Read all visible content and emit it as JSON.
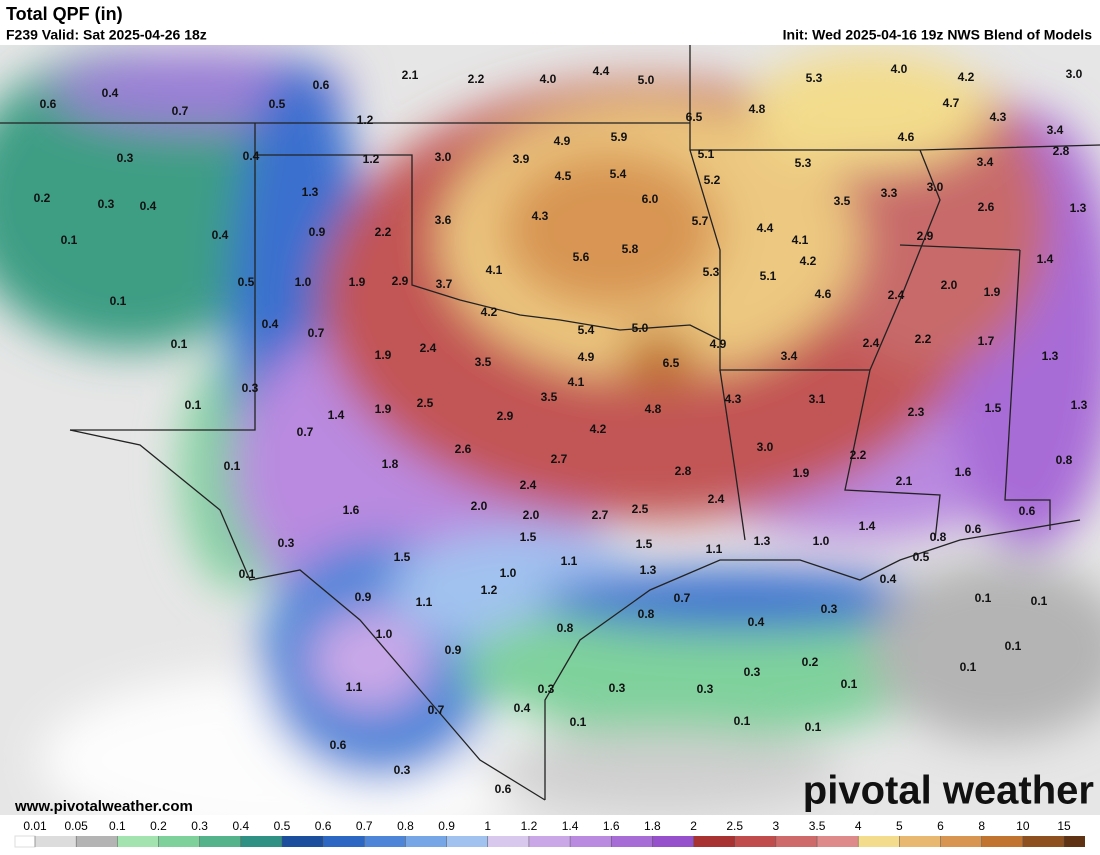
{
  "header": {
    "title": "Total QPF (in)",
    "valid": "F239 Valid: Sat 2025-04-26 18z",
    "init": "Init: Wed 2025-04-16 19z NWS Blend of Models"
  },
  "footer": {
    "url": "www.pivotalweather.com",
    "logo": "pivotal weather"
  },
  "map_labels": [
    "2.1",
    "2.2",
    "4.0",
    "4.4",
    "5.0",
    "5.3",
    "4.0",
    "4.2",
    "3.0",
    "0.6",
    "0.4",
    "0.7",
    "0.5",
    "0.6",
    "1.2",
    "6.5",
    "4.8",
    "4.7",
    "4.3",
    "4.6",
    "3.4",
    "0.3",
    "0.4",
    "1.2",
    "3.0",
    "3.9",
    "4.9",
    "5.9",
    "5.1",
    "5.3",
    "3.4",
    "2.8",
    "0.2",
    "0.3",
    "0.4",
    "1.3",
    "4.5",
    "5.4",
    "5.2",
    "3.0",
    "3.3",
    "3.5",
    "6.0",
    "2.6",
    "1.3",
    "0.1",
    "0.4",
    "0.9",
    "2.2",
    "3.6",
    "4.3",
    "5.7",
    "4.4",
    "4.1",
    "2.9",
    "5.6",
    "5.8",
    "4.2",
    "1.4",
    "0.5",
    "1.0",
    "1.9",
    "2.9",
    "3.7",
    "4.1",
    "5.3",
    "5.1",
    "2.0",
    "1.9",
    "4.6",
    "2.4",
    "0.1",
    "4.2",
    "0.4",
    "0.7",
    "5.4",
    "5.0",
    "4.9",
    "2.2",
    "1.7",
    "2.4",
    "0.1",
    "1.9",
    "2.4",
    "3.4",
    "1.3",
    "3.5",
    "4.9",
    "6.5",
    "0.3",
    "4.1",
    "3.5",
    "4.3",
    "3.1",
    "0.1",
    "1.4",
    "1.9",
    "2.5",
    "2.9",
    "4.8",
    "2.3",
    "1.5",
    "1.3",
    "0.7",
    "4.2",
    "2.6",
    "3.0",
    "0.1",
    "1.8",
    "2.7",
    "2.8",
    "1.9",
    "2.2",
    "1.6",
    "0.8",
    "2.4",
    "2.1",
    "1.6",
    "2.0",
    "2.0",
    "2.7",
    "2.5",
    "2.4",
    "1.5",
    "1.4",
    "0.6",
    "0.6",
    "0.8",
    "0.3",
    "1.5",
    "1.1",
    "1.3",
    "1.0",
    "0.5",
    "1.5",
    "1.1",
    "1.3",
    "0.1",
    "1.0",
    "0.4",
    "0.7",
    "0.9",
    "1.1",
    "1.2",
    "0.1",
    "0.1",
    "0.3",
    "0.8",
    "0.4",
    "0.8",
    "1.0",
    "0.1",
    "0.9",
    "0.2",
    "0.3",
    "0.1",
    "1.1",
    "0.3",
    "0.3",
    "0.3",
    "0.1",
    "0.4",
    "0.7",
    "0.1",
    "0.1",
    "0.1",
    "0.6",
    "0.3",
    "0.6"
  ],
  "legend": {
    "ticks": [
      0.01,
      0.05,
      0.1,
      0.2,
      0.3,
      0.4,
      0.5,
      0.6,
      0.7,
      0.8,
      0.9,
      1,
      1.2,
      1.4,
      1.6,
      1.8,
      2,
      2.5,
      3,
      3.5,
      4,
      5,
      6,
      8,
      10,
      15
    ],
    "colors": [
      "#dcdcdc",
      "#b4b4b4",
      "#a2e3b0",
      "#7fd19c",
      "#54b38b",
      "#2f9183",
      "#1b4f9e",
      "#2c67c4",
      "#4d86d8",
      "#77a6e6",
      "#a1c2ef",
      "#d8c8ee",
      "#caa8e8",
      "#b98ae0",
      "#a86cd7",
      "#9650cc",
      "#a83232",
      "#c04c4c",
      "#cf6a6a",
      "#de8a8a",
      "#f3dc8c",
      "#e8b870",
      "#d89552",
      "#c0742f",
      "#8f5020",
      "#5e3212"
    ]
  }
}
